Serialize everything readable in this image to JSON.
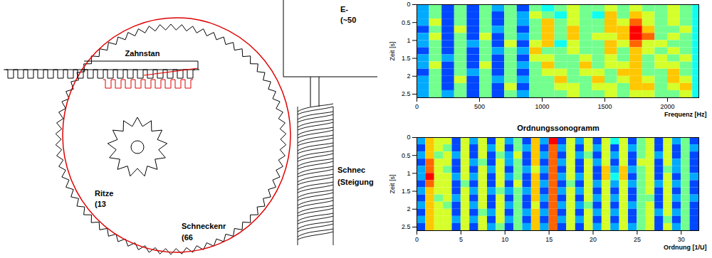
{
  "diagram": {
    "motor": {
      "lines": [
        "E-",
        "(~50"
      ]
    },
    "rack": {
      "lines": [
        "Zahnstan"
      ]
    },
    "pinion": {
      "lines": [
        "Ritze",
        "(13"
      ]
    },
    "worm": {
      "lines": [
        "Schnec",
        "(Steigung"
      ]
    },
    "worm_wheel": {
      "lines": [
        "Schneckenr",
        "(66"
      ]
    }
  },
  "chart_data": [
    {
      "type": "heatmap",
      "xlabel": "Frequenz [Hz]",
      "ylabel": "Zeit [s]",
      "xlim": [
        0,
        2250
      ],
      "xticks": [
        0,
        500,
        1000,
        1500,
        2000
      ],
      "ylim": [
        0,
        2.6
      ],
      "yticks": [
        0,
        0.5,
        1,
        1.5,
        2,
        2.5
      ],
      "color_range": [
        0,
        9
      ],
      "x": [
        0,
        100,
        200,
        300,
        400,
        500,
        600,
        700,
        800,
        900,
        1000,
        1100,
        1200,
        1300,
        1400,
        1500,
        1600,
        1700,
        1800,
        1900,
        2000,
        2100,
        2200
      ],
      "y": [
        0,
        0.2,
        0.4,
        0.6,
        0.8,
        1.0,
        1.2,
        1.4,
        1.6,
        1.8,
        2.0,
        2.2,
        2.4
      ],
      "cells": [
        [
          3,
          5,
          2,
          5,
          2,
          5,
          3,
          5,
          2,
          5,
          4,
          5,
          6,
          5,
          5,
          6,
          5,
          6,
          5,
          5,
          6,
          5,
          4
        ],
        [
          3,
          5,
          2,
          5,
          2,
          5,
          2,
          5,
          3,
          6,
          5,
          4,
          6,
          5,
          4,
          7,
          5,
          7,
          6,
          5,
          6,
          5,
          4
        ],
        [
          3,
          6,
          2,
          5,
          2,
          5,
          2,
          5,
          3,
          5,
          7,
          5,
          6,
          5,
          5,
          7,
          6,
          8,
          6,
          5,
          6,
          5,
          4
        ],
        [
          2,
          5,
          2,
          6,
          2,
          5,
          3,
          5,
          2,
          5,
          7,
          5,
          7,
          5,
          5,
          7,
          7,
          9,
          7,
          5,
          5,
          6,
          4
        ],
        [
          3,
          6,
          2,
          5,
          2,
          6,
          2,
          5,
          3,
          5,
          7,
          5,
          7,
          5,
          6,
          6,
          7,
          9,
          8,
          5,
          6,
          5,
          4
        ],
        [
          3,
          5,
          2,
          5,
          3,
          5,
          2,
          6,
          2,
          6,
          7,
          4,
          6,
          5,
          5,
          7,
          6,
          8,
          6,
          6,
          5,
          5,
          4
        ],
        [
          2,
          5,
          2,
          5,
          2,
          5,
          3,
          5,
          3,
          7,
          5,
          5,
          6,
          5,
          5,
          7,
          5,
          7,
          6,
          5,
          6,
          5,
          4
        ],
        [
          3,
          5,
          3,
          5,
          2,
          5,
          2,
          5,
          2,
          6,
          6,
          5,
          5,
          6,
          5,
          6,
          5,
          7,
          5,
          6,
          5,
          6,
          4
        ],
        [
          3,
          6,
          2,
          5,
          2,
          6,
          2,
          5,
          3,
          5,
          7,
          5,
          5,
          7,
          5,
          6,
          6,
          7,
          5,
          6,
          6,
          5,
          4
        ],
        [
          2,
          5,
          2,
          5,
          3,
          5,
          2,
          5,
          2,
          5,
          6,
          6,
          5,
          6,
          6,
          5,
          7,
          7,
          5,
          5,
          7,
          5,
          4
        ],
        [
          3,
          5,
          2,
          6,
          2,
          5,
          3,
          5,
          3,
          5,
          5,
          7,
          5,
          5,
          7,
          5,
          6,
          7,
          6,
          5,
          7,
          6,
          4
        ],
        [
          3,
          5,
          2,
          5,
          2,
          5,
          2,
          6,
          2,
          5,
          5,
          6,
          6,
          5,
          6,
          6,
          5,
          7,
          7,
          5,
          6,
          7,
          4
        ],
        [
          3,
          5,
          3,
          5,
          2,
          5,
          2,
          5,
          3,
          5,
          5,
          5,
          6,
          5,
          5,
          6,
          5,
          6,
          6,
          5,
          5,
          6,
          4
        ]
      ]
    },
    {
      "type": "heatmap",
      "title": "Ordnungssonogramm",
      "xlabel": "Ordnung [1/U]",
      "ylabel": "Zeit [s]",
      "xlim": [
        0,
        32
      ],
      "xticks": [
        0,
        5,
        10,
        15,
        20,
        25,
        30
      ],
      "ylim": [
        0,
        2.6
      ],
      "yticks": [
        0,
        0.5,
        1,
        1.5,
        2,
        2.5
      ],
      "color_range": [
        0,
        9
      ],
      "x": [
        0,
        1,
        2,
        3,
        4,
        5,
        6,
        7,
        8,
        9,
        10,
        11,
        12,
        13,
        14,
        15,
        16,
        17,
        18,
        19,
        20,
        21,
        22,
        23,
        24,
        25,
        26,
        27,
        28,
        29,
        30,
        31
      ],
      "y": [
        0,
        0.2,
        0.4,
        0.6,
        0.8,
        1.0,
        1.2,
        1.4,
        1.6,
        1.8,
        2.0,
        2.2,
        2.4
      ],
      "cells": [
        [
          3,
          7,
          6,
          6,
          2,
          6,
          3,
          6,
          2,
          6,
          3,
          5,
          2,
          7,
          3,
          9,
          2,
          6,
          3,
          6,
          2,
          6,
          4,
          6,
          2,
          5,
          6,
          2,
          6,
          3,
          5,
          2
        ],
        [
          2,
          7,
          6,
          5,
          2,
          6,
          2,
          6,
          3,
          6,
          2,
          5,
          3,
          7,
          2,
          8,
          3,
          6,
          2,
          6,
          3,
          6,
          2,
          6,
          3,
          5,
          6,
          2,
          6,
          2,
          5,
          3
        ],
        [
          3,
          7,
          5,
          6,
          3,
          6,
          2,
          6,
          2,
          5,
          3,
          6,
          2,
          7,
          3,
          8,
          2,
          6,
          3,
          5,
          2,
          6,
          3,
          6,
          2,
          5,
          6,
          3,
          6,
          2,
          5,
          2
        ],
        [
          2,
          8,
          6,
          6,
          2,
          6,
          3,
          5,
          2,
          6,
          3,
          5,
          2,
          7,
          2,
          8,
          3,
          6,
          2,
          6,
          3,
          6,
          2,
          6,
          2,
          6,
          6,
          2,
          6,
          3,
          5,
          2
        ],
        [
          3,
          8,
          6,
          5,
          2,
          6,
          2,
          6,
          3,
          6,
          2,
          5,
          3,
          6,
          3,
          8,
          2,
          6,
          2,
          6,
          2,
          7,
          3,
          7,
          3,
          5,
          6,
          2,
          5,
          3,
          5,
          2
        ],
        [
          3,
          9,
          6,
          6,
          3,
          6,
          3,
          6,
          2,
          6,
          3,
          5,
          2,
          7,
          2,
          8,
          3,
          6,
          3,
          6,
          2,
          7,
          4,
          7,
          2,
          5,
          6,
          2,
          6,
          2,
          5,
          3
        ],
        [
          2,
          8,
          6,
          6,
          2,
          5,
          2,
          6,
          2,
          6,
          2,
          6,
          2,
          7,
          3,
          8,
          2,
          5,
          2,
          6,
          3,
          6,
          3,
          6,
          3,
          5,
          6,
          3,
          6,
          3,
          5,
          2
        ],
        [
          3,
          7,
          6,
          6,
          2,
          6,
          3,
          6,
          3,
          5,
          3,
          5,
          3,
          7,
          2,
          8,
          3,
          6,
          3,
          6,
          2,
          6,
          2,
          6,
          2,
          5,
          6,
          2,
          6,
          2,
          5,
          2
        ],
        [
          2,
          7,
          5,
          6,
          3,
          6,
          2,
          6,
          2,
          6,
          2,
          5,
          2,
          7,
          3,
          8,
          2,
          6,
          2,
          6,
          3,
          6,
          3,
          6,
          2,
          5,
          5,
          2,
          6,
          3,
          5,
          3
        ],
        [
          3,
          7,
          6,
          5,
          2,
          6,
          3,
          6,
          2,
          6,
          3,
          5,
          2,
          6,
          2,
          8,
          3,
          6,
          3,
          5,
          2,
          6,
          2,
          6,
          3,
          5,
          6,
          2,
          6,
          2,
          5,
          2
        ],
        [
          2,
          7,
          6,
          6,
          2,
          6,
          2,
          5,
          3,
          6,
          2,
          5,
          3,
          7,
          3,
          8,
          2,
          6,
          2,
          6,
          3,
          6,
          3,
          6,
          2,
          5,
          6,
          3,
          6,
          3,
          5,
          2
        ],
        [
          3,
          7,
          6,
          6,
          3,
          6,
          3,
          6,
          2,
          6,
          3,
          5,
          2,
          7,
          2,
          8,
          3,
          6,
          3,
          6,
          2,
          6,
          2,
          6,
          2,
          5,
          6,
          2,
          5,
          2,
          5,
          2
        ],
        [
          2,
          7,
          6,
          6,
          2,
          6,
          2,
          6,
          3,
          5,
          2,
          5,
          3,
          7,
          3,
          8,
          2,
          6,
          2,
          6,
          3,
          6,
          3,
          6,
          3,
          5,
          6,
          2,
          6,
          3,
          5,
          2
        ]
      ]
    }
  ]
}
